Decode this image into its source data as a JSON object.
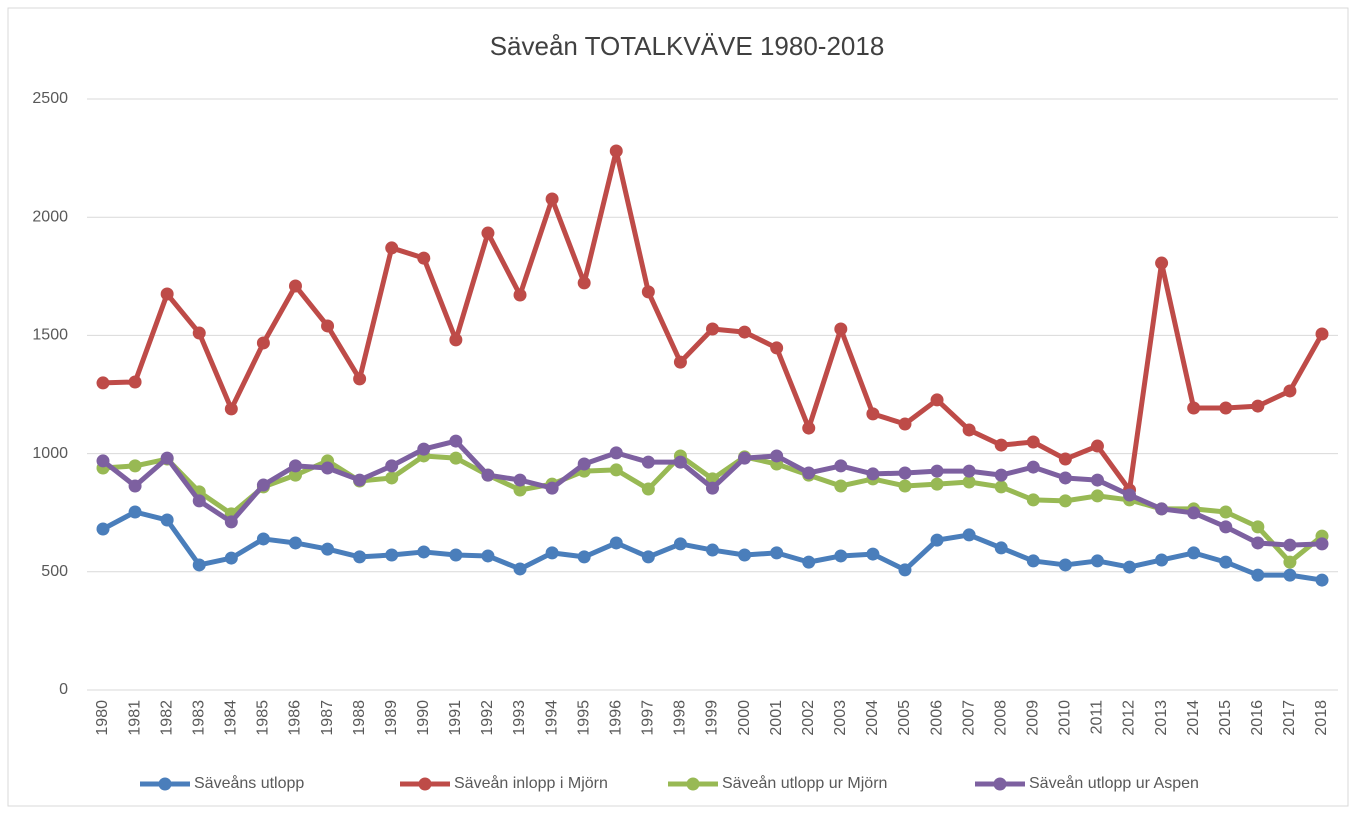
{
  "chart_data": {
    "type": "line",
    "title": "Säveån TOTALKVÄVE 1980-2018",
    "categories": [
      "1980",
      "1981",
      "1982",
      "1983",
      "1984",
      "1985",
      "1986",
      "1987",
      "1988",
      "1989",
      "1990",
      "1991",
      "1992",
      "1993",
      "1994",
      "1995",
      "1996",
      "1997",
      "1998",
      "1999",
      "2000",
      "2001",
      "2002",
      "2003",
      "2004",
      "2005",
      "2006",
      "2007",
      "2008",
      "2009",
      "2010",
      "2011",
      "2012",
      "2013",
      "2014",
      "2015",
      "2016",
      "2017",
      "2018"
    ],
    "series": [
      {
        "name": "Säveåns utlopp",
        "color": "#4a7ebb",
        "values": [
          681,
          753,
          719,
          529,
          558,
          639,
          622,
          596,
          563,
          571,
          584,
          571,
          567,
          512,
          580,
          563,
          622,
          563,
          618,
          592,
          571,
          580,
          541,
          567,
          575,
          508,
          634,
          656,
          601,
          546,
          529,
          546,
          520,
          550,
          580,
          541,
          486,
          486,
          465
        ]
      },
      {
        "name": "Säveån inlopp i Mjörn",
        "color": "#be4b48",
        "values": [
          1299,
          1303,
          1675,
          1510,
          1189,
          1468,
          1709,
          1540,
          1316,
          1870,
          1827,
          1481,
          1933,
          1671,
          2077,
          1722,
          2280,
          1684,
          1387,
          1527,
          1514,
          1447,
          1108,
          1527,
          1168,
          1125,
          1227,
          1100,
          1036,
          1049,
          977,
          1032,
          846,
          1806,
          1193,
          1193,
          1201,
          1265,
          1506
        ]
      },
      {
        "name": "Säveån utlopp ur Mjörn",
        "color": "#98b954",
        "values": [
          939,
          948,
          977,
          838,
          745,
          859,
          909,
          969,
          884,
          897,
          990,
          981,
          909,
          846,
          871,
          926,
          931,
          850,
          990,
          893,
          986,
          956,
          909,
          863,
          893,
          863,
          871,
          880,
          859,
          804,
          800,
          821,
          804,
          766,
          766,
          753,
          690,
          541,
          651
        ]
      },
      {
        "name": "Säveån utlopp ur Aspen",
        "color": "#7d60a0",
        "values": [
          969,
          863,
          981,
          800,
          711,
          867,
          948,
          939,
          888,
          948,
          1019,
          1053,
          909,
          888,
          854,
          956,
          1003,
          964,
          964,
          854,
          981,
          990,
          918,
          948,
          914,
          918,
          926,
          926,
          909,
          943,
          897,
          888,
          825,
          766,
          749,
          690,
          622,
          613,
          618
        ]
      }
    ],
    "ylim": [
      0,
      2500
    ],
    "yticks": [
      0,
      500,
      1000,
      1500,
      2000,
      2500
    ],
    "grid": true,
    "legend": "bottom"
  }
}
